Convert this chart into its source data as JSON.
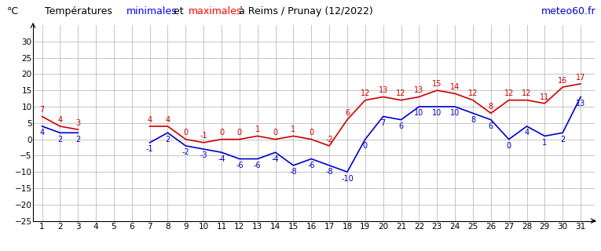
{
  "watermark": "meteo60.fr",
  "days": [
    1,
    2,
    3,
    4,
    5,
    6,
    7,
    8,
    9,
    10,
    11,
    12,
    13,
    14,
    15,
    16,
    17,
    18,
    19,
    20,
    21,
    22,
    23,
    24,
    25,
    26,
    27,
    28,
    29,
    30,
    31
  ],
  "min_temps": [
    4,
    2,
    2,
    null,
    null,
    null,
    -1,
    2,
    -2,
    -3,
    -4,
    -6,
    -6,
    -4,
    -8,
    -6,
    -8,
    -10,
    0,
    7,
    6,
    10,
    10,
    10,
    8,
    6,
    0,
    4,
    1,
    2,
    13
  ],
  "max_temps": [
    7,
    4,
    3,
    null,
    null,
    null,
    4,
    4,
    0,
    -1,
    0,
    0,
    1,
    0,
    1,
    0,
    -2,
    6,
    12,
    13,
    12,
    13,
    15,
    14,
    12,
    8,
    12,
    12,
    11,
    16,
    17
  ],
  "min_color": "#0000cc",
  "max_color": "#cc0000",
  "background_color": "white",
  "grid_color": "#bbbbbb",
  "ylim": [
    -25,
    35
  ],
  "yticks": [
    -25,
    -20,
    -15,
    -10,
    -5,
    0,
    5,
    10,
    15,
    20,
    25,
    30
  ],
  "xlim": [
    0.5,
    31.8
  ],
  "xticks": [
    1,
    2,
    3,
    4,
    5,
    6,
    7,
    8,
    9,
    10,
    11,
    12,
    13,
    14,
    15,
    16,
    17,
    18,
    19,
    20,
    21,
    22,
    23,
    24,
    25,
    26,
    27,
    28,
    29,
    30,
    31
  ],
  "label_fontsize": 7,
  "tick_fontsize": 7.5
}
